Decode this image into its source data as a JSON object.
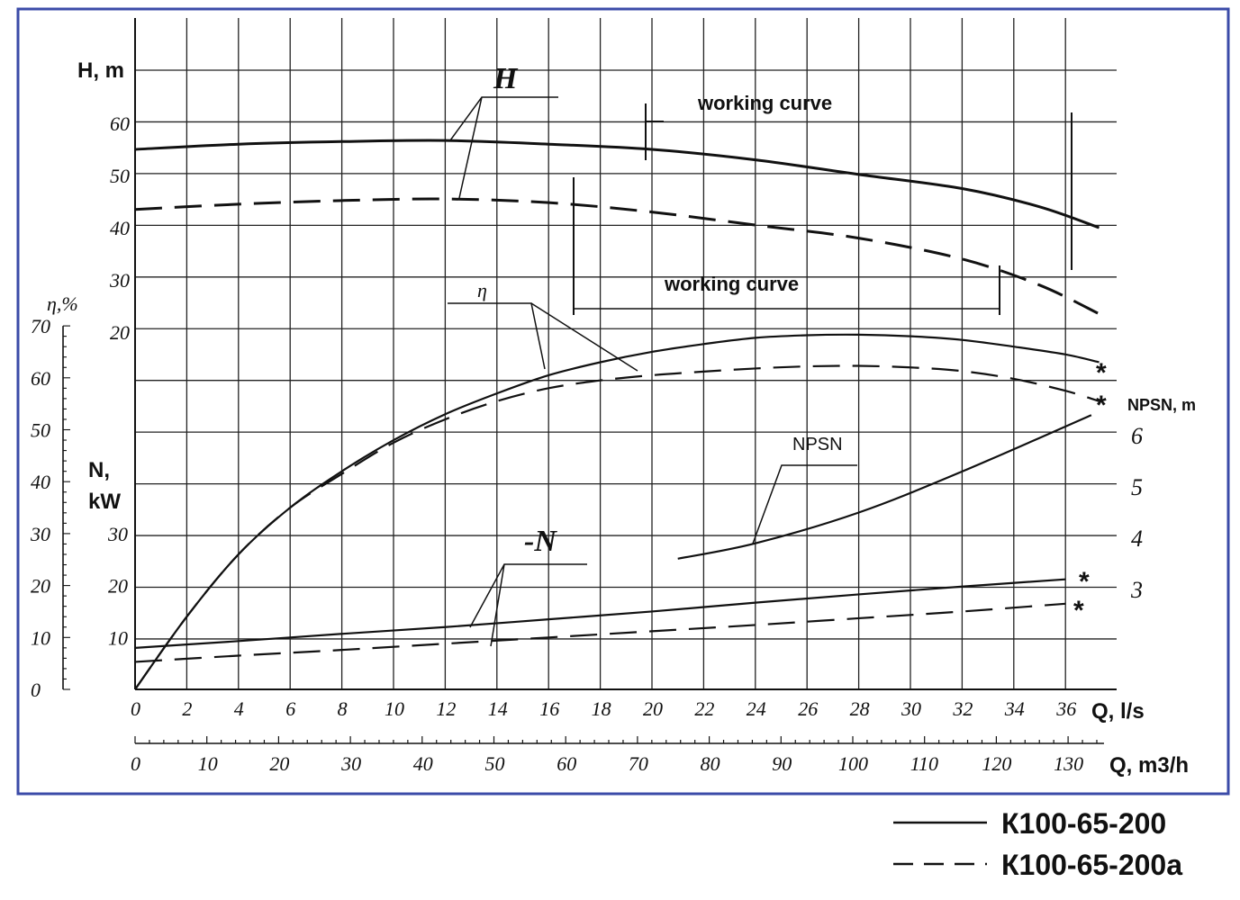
{
  "chart_data": {
    "type": "line",
    "x_units_primary": "Q, l/s",
    "x_units_secondary": "Q, m3/h",
    "x_ticks_ls": [
      0,
      2,
      4,
      6,
      8,
      10,
      12,
      14,
      16,
      18,
      20,
      22,
      24,
      26,
      28,
      30,
      32,
      34,
      36
    ],
    "x_ticks_m3h": [
      0,
      10,
      20,
      30,
      40,
      50,
      60,
      70,
      80,
      90,
      100,
      110,
      120,
      130
    ],
    "xlim_ls": [
      0,
      38
    ],
    "axes": {
      "H": {
        "label": "H, m",
        "ticks": [
          20,
          30,
          40,
          50,
          60
        ],
        "ylim": [
          20,
          60
        ]
      },
      "eta": {
        "label": "η,%",
        "ticks": [
          0,
          10,
          20,
          30,
          40,
          50,
          60,
          70
        ],
        "ylim": [
          0,
          70
        ]
      },
      "N": {
        "label_line1": "N,",
        "label_line2": "kW",
        "ticks": [
          10,
          20,
          30
        ],
        "ylim": [
          0,
          30
        ]
      },
      "NPSN": {
        "label": "NPSN, m",
        "ticks": [
          3,
          4,
          5,
          6
        ]
      }
    },
    "series": [
      {
        "name": "К100-65-200",
        "axis": "H",
        "style": "solid",
        "x": [
          0,
          4,
          8,
          12,
          16,
          20,
          24,
          28,
          32,
          35,
          37.3
        ],
        "y": [
          55,
          56,
          56.5,
          56.7,
          56,
          55,
          53,
          50.2,
          47.5,
          44,
          40
        ]
      },
      {
        "name": "К100-65-200a",
        "axis": "H",
        "style": "dashed",
        "x": [
          0,
          4,
          8,
          12,
          16,
          20,
          24,
          28,
          32,
          35,
          37.3
        ],
        "y": [
          43.5,
          44.5,
          45.2,
          45.5,
          44.8,
          43,
          40.5,
          38,
          34,
          29,
          23.5
        ]
      },
      {
        "name": "К100-65-200",
        "axis": "eta",
        "style": "solid",
        "x": [
          0,
          2,
          4,
          6,
          8,
          10,
          12,
          14,
          16,
          18,
          20,
          22,
          24,
          26,
          28,
          30,
          32,
          34,
          36,
          37.3
        ],
        "y": [
          0,
          14,
          26,
          35,
          42,
          48,
          53,
          57,
          60.5,
          63,
          65,
          66.5,
          67.7,
          68.2,
          68.3,
          68,
          67.3,
          66,
          64.5,
          63
        ]
      },
      {
        "name": "К100-65-200a",
        "axis": "eta",
        "style": "dashed",
        "x": [
          0,
          2,
          4,
          6,
          8,
          10,
          12,
          14,
          16,
          18,
          20,
          22,
          24,
          26,
          28,
          30,
          32,
          34,
          36,
          37.3
        ],
        "y": [
          0,
          14,
          26,
          35,
          41.5,
          47.5,
          52,
          55.5,
          58,
          59.5,
          60.5,
          61.2,
          61.8,
          62.2,
          62.3,
          62,
          61.3,
          59.8,
          57.5,
          55.5
        ]
      },
      {
        "name": "К100-65-200",
        "axis": "N",
        "style": "solid",
        "x": [
          0,
          4,
          8,
          12,
          16,
          20,
          24,
          28,
          32,
          36
        ],
        "y": [
          8,
          9.3,
          10.7,
          12,
          13.5,
          15,
          16.7,
          18.3,
          19.8,
          21.2
        ]
      },
      {
        "name": "К100-65-200a",
        "axis": "N",
        "style": "dashed",
        "x": [
          0,
          4,
          8,
          12,
          16,
          20,
          24,
          28,
          32,
          36
        ],
        "y": [
          5.3,
          6.5,
          7.6,
          8.8,
          10,
          11.2,
          12.4,
          13.7,
          15,
          16.5
        ]
      },
      {
        "name": "NPSN",
        "axis": "NPSN",
        "style": "solid",
        "x": [
          21,
          24,
          28,
          32,
          37
        ],
        "y": [
          3.6,
          3.9,
          4.5,
          5.3,
          6.4
        ]
      }
    ],
    "annotations": {
      "H": "H",
      "eta": "η",
      "N": "-N",
      "NPSN": "NPSN",
      "working_curve_1": "working curve",
      "working_curve_2": "working curve",
      "star": "*"
    },
    "grid": true,
    "legend": {
      "position": "bottom-right",
      "items": [
        {
          "label": "К100-65-200",
          "style": "solid"
        },
        {
          "label": "К100-65-200a",
          "style": "dashed"
        }
      ]
    },
    "colors": {
      "line": "#111111",
      "frame": "#3b4ba8",
      "grid": "#222222"
    }
  }
}
